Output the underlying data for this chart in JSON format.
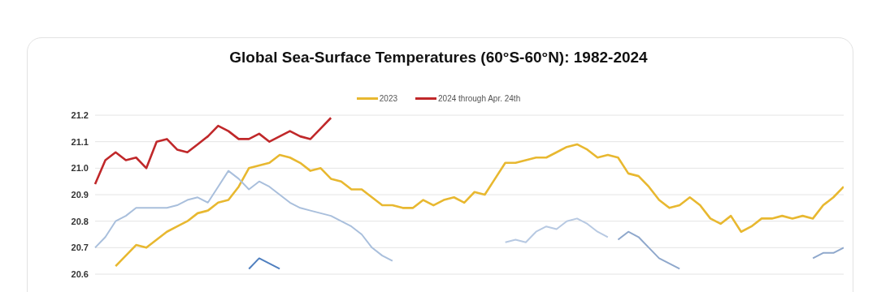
{
  "chart_data": {
    "type": "line",
    "title": "Global Sea-Surface Temperatures (60°S-60°N): 1982-2024",
    "categories": [
      null,
      null,
      null,
      null,
      null,
      null,
      null,
      null,
      null,
      null,
      null,
      null,
      null,
      null,
      null,
      null,
      null,
      null,
      null,
      null,
      null,
      null,
      null,
      null,
      null,
      null,
      null,
      null,
      null,
      null,
      null,
      null,
      null,
      null,
      null,
      null,
      null,
      null,
      null,
      null,
      null,
      null,
      null,
      null,
      null,
      null,
      null,
      null,
      null,
      null,
      null,
      null,
      null,
      null,
      null,
      null,
      null,
      null,
      null,
      null,
      null,
      null,
      null,
      null,
      null,
      null,
      null,
      null,
      null,
      null,
      null,
      null,
      null,
      null
    ],
    "series": [
      {
        "name": "2023",
        "color": "#e8b830",
        "values": [
          null,
          null,
          20.63,
          20.67,
          20.71,
          20.7,
          20.73,
          20.76,
          20.78,
          20.8,
          20.83,
          20.84,
          20.87,
          20.88,
          20.93,
          21.0,
          21.01,
          21.02,
          21.05,
          21.04,
          21.02,
          20.99,
          21.0,
          20.96,
          20.95,
          20.92,
          20.92,
          20.89,
          20.86,
          20.86,
          20.85,
          20.85,
          20.88,
          20.86,
          20.88,
          20.89,
          20.87,
          20.91,
          20.9,
          20.96,
          21.02,
          21.02,
          21.03,
          21.04,
          21.04,
          21.06,
          21.08,
          21.09,
          21.07,
          21.04,
          21.05,
          21.04,
          20.98,
          20.97,
          20.93,
          20.88,
          20.85,
          20.86,
          20.89,
          20.86,
          20.81,
          20.79,
          20.82,
          20.76,
          20.78,
          20.81,
          20.81,
          20.82,
          20.81,
          20.82,
          20.81,
          20.86,
          20.89,
          20.93
        ]
      },
      {
        "name": "2024 through Apr. 24th",
        "color": "#c0282a",
        "values": [
          20.94,
          21.03,
          21.06,
          21.03,
          21.04,
          21.0,
          21.1,
          21.11,
          21.07,
          21.06,
          21.09,
          21.12,
          21.16,
          21.14,
          21.11,
          21.11,
          21.13,
          21.1,
          21.12,
          21.14,
          21.12,
          21.11,
          21.15,
          21.19,
          null,
          null,
          null,
          null,
          null,
          null,
          null,
          null,
          null,
          null,
          null,
          null,
          null,
          null,
          null,
          null,
          null,
          null,
          null,
          null,
          null,
          null,
          null,
          null,
          null,
          null,
          null,
          null,
          null,
          null,
          null,
          null,
          null,
          null,
          null,
          null,
          null,
          null,
          null,
          null,
          null,
          null,
          null,
          null,
          null,
          null,
          null,
          null,
          null,
          null
        ]
      },
      {
        "color": "#a9bfdc",
        "values": [
          20.7,
          20.74,
          20.8,
          20.82,
          20.85,
          20.85,
          20.85,
          20.85,
          20.86,
          20.88,
          20.89,
          20.87,
          20.93,
          20.99,
          20.96,
          20.92,
          20.95,
          20.93,
          20.9,
          20.87,
          20.85,
          20.84,
          20.83,
          20.82,
          20.8,
          20.78,
          20.75,
          20.7,
          20.67,
          20.65,
          null,
          null,
          null,
          null,
          null,
          null,
          null,
          null,
          null,
          null,
          null,
          null,
          null,
          null,
          null,
          null,
          null,
          null,
          null,
          null,
          null,
          null,
          null,
          null,
          null,
          null,
          null,
          null,
          null,
          null,
          null,
          null,
          null,
          null,
          null,
          null,
          null,
          null,
          null,
          null,
          null,
          null,
          null,
          null
        ]
      },
      {
        "color": "#8fa8cc",
        "values": [
          null,
          null,
          null,
          null,
          null,
          null,
          null,
          null,
          null,
          null,
          null,
          null,
          null,
          null,
          null,
          null,
          null,
          null,
          null,
          null,
          null,
          null,
          null,
          null,
          null,
          null,
          null,
          null,
          null,
          null,
          null,
          null,
          null,
          null,
          null,
          null,
          null,
          null,
          null,
          null,
          null,
          null,
          null,
          null,
          null,
          null,
          null,
          null,
          null,
          null,
          null,
          20.73,
          20.76,
          20.74,
          20.7,
          20.66,
          20.64,
          20.62,
          null,
          null,
          null,
          null,
          null,
          null,
          null,
          null,
          null,
          null,
          null,
          null,
          20.66,
          20.68,
          20.68,
          20.7
        ]
      },
      {
        "color": "#b7c9e2",
        "values": [
          null,
          null,
          null,
          null,
          null,
          null,
          null,
          null,
          null,
          null,
          null,
          null,
          null,
          null,
          null,
          null,
          null,
          null,
          null,
          null,
          null,
          null,
          null,
          null,
          null,
          null,
          null,
          null,
          null,
          null,
          null,
          null,
          null,
          null,
          null,
          null,
          null,
          null,
          null,
          null,
          20.72,
          20.73,
          20.72,
          20.76,
          20.78,
          20.77,
          20.8,
          20.81,
          20.79,
          20.76,
          20.74,
          null,
          null,
          null,
          null,
          null,
          null,
          null,
          null,
          null,
          null,
          null,
          null,
          null,
          null,
          null,
          null,
          null,
          null,
          null,
          null,
          null,
          null,
          null
        ]
      },
      {
        "color": "#4f7fbf",
        "values": [
          null,
          null,
          null,
          null,
          null,
          null,
          null,
          null,
          null,
          null,
          null,
          null,
          null,
          null,
          null,
          20.62,
          20.66,
          20.64,
          20.62,
          null,
          null,
          null,
          null,
          null,
          null,
          null,
          null,
          null,
          null,
          null,
          null,
          null,
          null,
          null,
          null,
          null,
          null,
          null,
          null,
          null,
          null,
          null,
          null,
          null,
          null,
          null,
          null,
          null,
          null,
          null,
          null,
          null,
          null,
          null,
          null,
          null,
          null,
          null,
          null,
          null,
          null,
          null,
          null,
          null,
          null,
          null,
          null,
          null,
          null,
          null,
          null,
          null,
          null,
          null
        ]
      }
    ],
    "ylim": [
      20.6,
      21.2
    ],
    "yticks": [
      20.6,
      20.7,
      20.8,
      20.9,
      {
        "value": 21,
        "label": "21.0"
      },
      21.1,
      21.2
    ],
    "grid": "y",
    "legend": "top",
    "tick_labels": "y"
  }
}
